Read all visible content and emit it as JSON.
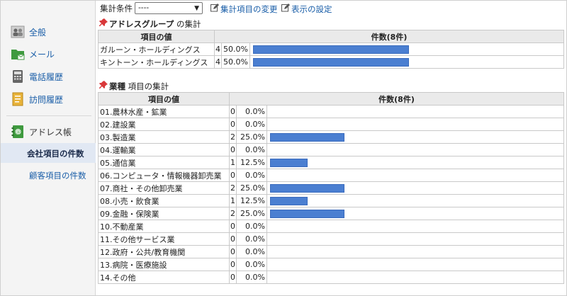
{
  "sidebar": {
    "items": [
      {
        "label": "全般",
        "icon": "people-icon"
      },
      {
        "label": "メール",
        "icon": "mail-folder-icon"
      },
      {
        "label": "電話履歴",
        "icon": "phone-icon"
      },
      {
        "label": "訪問履歴",
        "icon": "visit-document-icon"
      }
    ],
    "addressbook": {
      "label": "アドレス帳",
      "icon": "addressbook-icon"
    },
    "subitems": [
      {
        "label": "会社項目の件数",
        "active": true
      },
      {
        "label": "顧客項目の件数",
        "active": false
      }
    ]
  },
  "toolbar": {
    "condition_label": "集計条件",
    "condition_value": "----",
    "link_change": "集計項目の変更",
    "link_settings": "表示の設定"
  },
  "section1": {
    "title_bold": "アドレスグループ",
    "title_rest": " の集計",
    "col_item": "項目の値",
    "col_count": "件数(8件)",
    "rows": [
      {
        "name": "ガルーン・ホールディングス",
        "count": "4",
        "pct": "50.0%",
        "frac": 0.5
      },
      {
        "name": "キントーン・ホールディングス",
        "count": "4",
        "pct": "50.0%",
        "frac": 0.5
      }
    ]
  },
  "section2": {
    "title_bold": "業種",
    "title_rest": " 項目の集計",
    "col_item": "項目の値",
    "col_count": "件数(8件)",
    "rows": [
      {
        "name": "01.農林水産・鉱業",
        "count": "0",
        "pct": "0.0%",
        "frac": 0
      },
      {
        "name": "02.建設業",
        "count": "0",
        "pct": "0.0%",
        "frac": 0
      },
      {
        "name": "03.製造業",
        "count": "2",
        "pct": "25.0%",
        "frac": 0.25
      },
      {
        "name": "04.運輸業",
        "count": "0",
        "pct": "0.0%",
        "frac": 0
      },
      {
        "name": "05.通信業",
        "count": "1",
        "pct": "12.5%",
        "frac": 0.125
      },
      {
        "name": "06.コンピュータ・情報機器卸売業",
        "count": "0",
        "pct": "0.0%",
        "frac": 0
      },
      {
        "name": "07.商社・その他卸売業",
        "count": "2",
        "pct": "25.0%",
        "frac": 0.25
      },
      {
        "name": "08.小売・飲食業",
        "count": "1",
        "pct": "12.5%",
        "frac": 0.125
      },
      {
        "name": "09.金融・保険業",
        "count": "2",
        "pct": "25.0%",
        "frac": 0.25
      },
      {
        "name": "10.不動産業",
        "count": "0",
        "pct": "0.0%",
        "frac": 0
      },
      {
        "name": "11.その他サービス業",
        "count": "0",
        "pct": "0.0%",
        "frac": 0
      },
      {
        "name": "12.政府・公共/教育機関",
        "count": "0",
        "pct": "0.0%",
        "frac": 0
      },
      {
        "name": "13.病院・医療施設",
        "count": "0",
        "pct": "0.0%",
        "frac": 0
      },
      {
        "name": "14.その他",
        "count": "0",
        "pct": "0.0%",
        "frac": 0
      }
    ]
  },
  "colors": {
    "bar": "#4b7fd1",
    "link": "#1a5ea8",
    "pin": "#d9383a"
  }
}
